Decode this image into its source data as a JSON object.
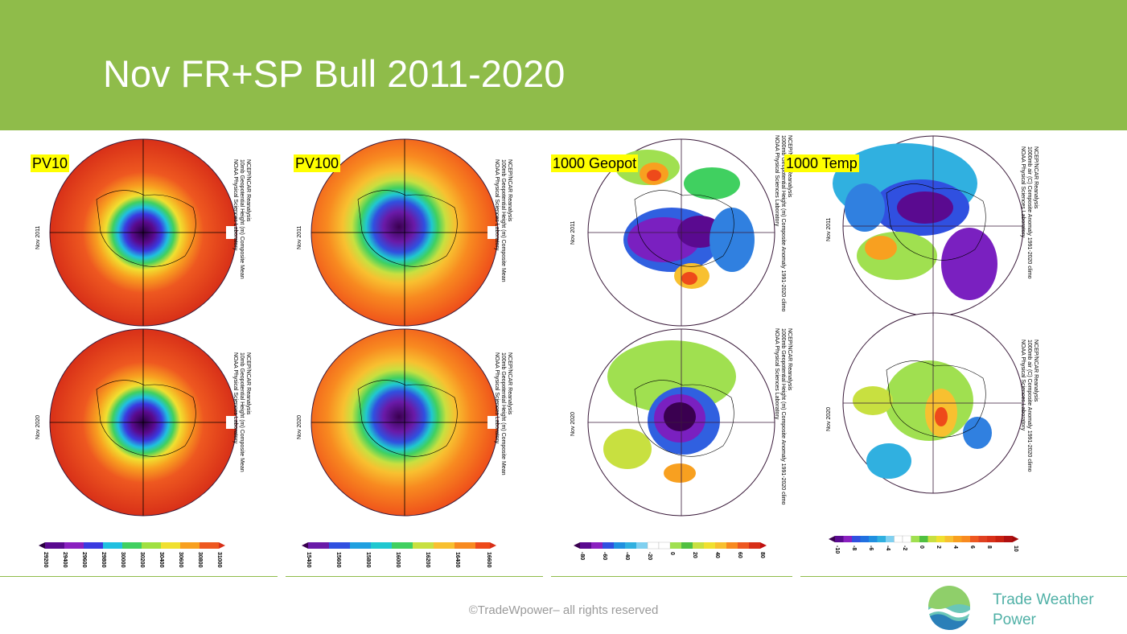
{
  "title": "Nov FR+SP Bull 2011-2020",
  "footer": {
    "copyright": "©TradeWpower– all rights reserved"
  },
  "brand": {
    "line1": "Trade Weather",
    "line2": "Power",
    "color": "#4fb0a6",
    "icon": "wave-globe-logo"
  },
  "colors": {
    "header": "#8fbc4a"
  },
  "panels": [
    {
      "label": "PV10",
      "meta_top": [
        "NCEP/NCAR Reanalysis",
        "10mb Geopotential Height (m) Composite Mean",
        "NOAA Physical Sciences Laboratory"
      ],
      "meta_bottom": [
        "NCEP/NCAR Reanalysis",
        "10mb Geopotential Height (m) Composite Mean",
        "NOAA Physical Sciences Laboratory"
      ],
      "date_top": "Nov 2011",
      "date_bottom": "Nov 2020",
      "ticks": [
        "29200",
        "29400",
        "29600",
        "29800",
        "30000",
        "30200",
        "30400",
        "30600",
        "30800",
        "31000"
      ]
    },
    {
      "label": "PV100",
      "meta_top": [
        "NCEP/NCAR Reanalysis",
        "100mb Geopotential Height (m) Composite Mean",
        "NOAA Physical Sciences Laboratory"
      ],
      "meta_bottom": [
        "NCEP/NCAR Reanalysis",
        "100mb Geopotential Height (m) Composite Mean",
        "NOAA Physical Sciences Laboratory"
      ],
      "date_top": "Nov 2011",
      "date_bottom": "Nov 2020",
      "ticks": [
        "15400",
        "15600",
        "15800",
        "16000",
        "16200",
        "16400",
        "16600"
      ]
    },
    {
      "label": "1000 Geopot",
      "meta_top": [
        "NCEP/NCAR Reanalysis",
        "1000mb Geopotential Height (m) Composite Anomaly 1991-2020 climo",
        "NOAA Physical Sciences Laboratory"
      ],
      "meta_bottom": [
        "NCEP/NCAR Reanalysis",
        "1000mb Geopotential Height (m) Composite Anomaly 1991-2020 climo",
        "NOAA Physical Sciences Laboratory"
      ],
      "date_top": "Nov 2011",
      "date_bottom": "Nov 2020",
      "ticks": [
        "-80",
        "-60",
        "-40",
        "-20",
        "0",
        "20",
        "40",
        "60",
        "80"
      ]
    },
    {
      "label": "1000 Temp",
      "meta_top": [
        "NCEP/NCAR Reanalysis",
        "1000mb air (C) Composite Anomaly 1991-2020 climo",
        "NOAA Physical Sciences Laboratory"
      ],
      "meta_bottom": [
        "NCEP/NCAR Reanalysis",
        "1000mb air (C) Composite Anomaly 1991-2020 climo",
        "NOAA Physical Sciences Laboratory"
      ],
      "date_top": "Nov 2011",
      "date_bottom": "Nov 2020",
      "ticks": [
        "-10",
        "-8",
        "-6",
        "-4",
        "-2",
        "0",
        "2",
        "4",
        "6",
        "8",
        "10"
      ]
    }
  ]
}
